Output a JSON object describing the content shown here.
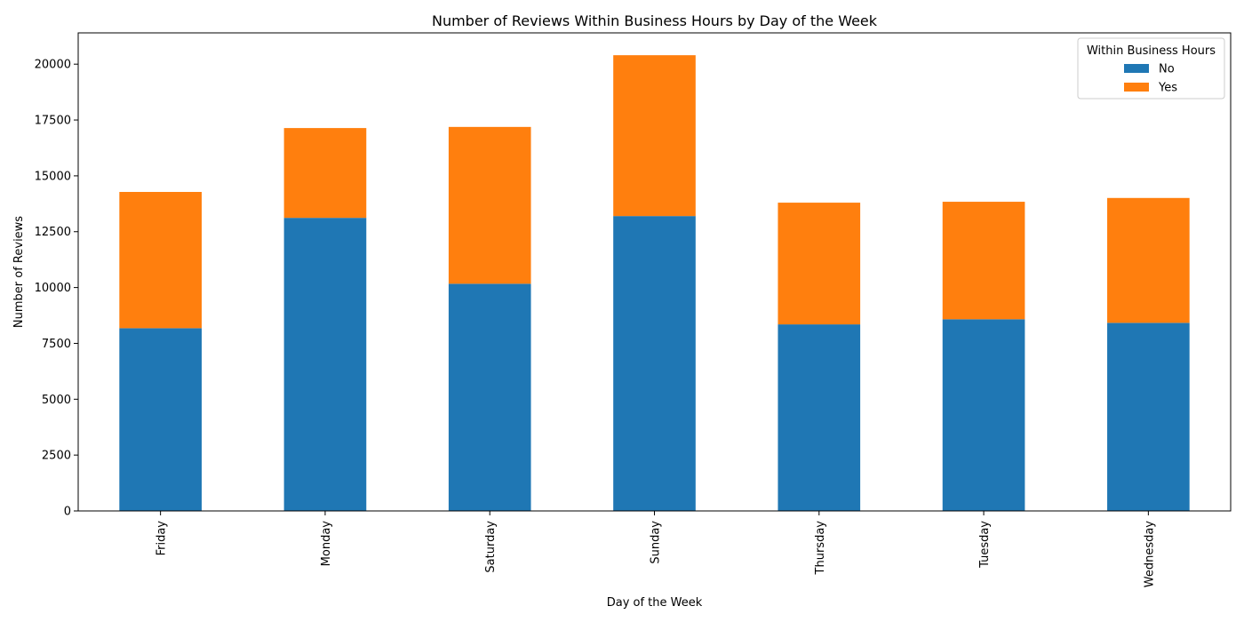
{
  "chart_data": {
    "type": "bar",
    "stacked": true,
    "title": "Number of Reviews Within Business Hours by Day of the Week",
    "xlabel": "Day of the Week",
    "ylabel": "Number of Reviews",
    "categories": [
      "Friday",
      "Monday",
      "Saturday",
      "Sunday",
      "Thursday",
      "Tuesday",
      "Wednesday"
    ],
    "series": [
      {
        "name": "No",
        "color": "#1f77b4",
        "values": [
          8180,
          13120,
          10170,
          13200,
          8350,
          8580,
          8420
        ]
      },
      {
        "name": "Yes",
        "color": "#ff7f0e",
        "values": [
          6100,
          4020,
          7020,
          7200,
          5450,
          5260,
          5590
        ]
      }
    ],
    "ylim": [
      0,
      21400
    ],
    "yticks": [
      "0",
      "2500",
      "5000",
      "7500",
      "10000",
      "12500",
      "15000",
      "17500",
      "20000"
    ],
    "grid": false,
    "legend": {
      "title": "Within Business Hours",
      "placement": "top-right"
    }
  }
}
